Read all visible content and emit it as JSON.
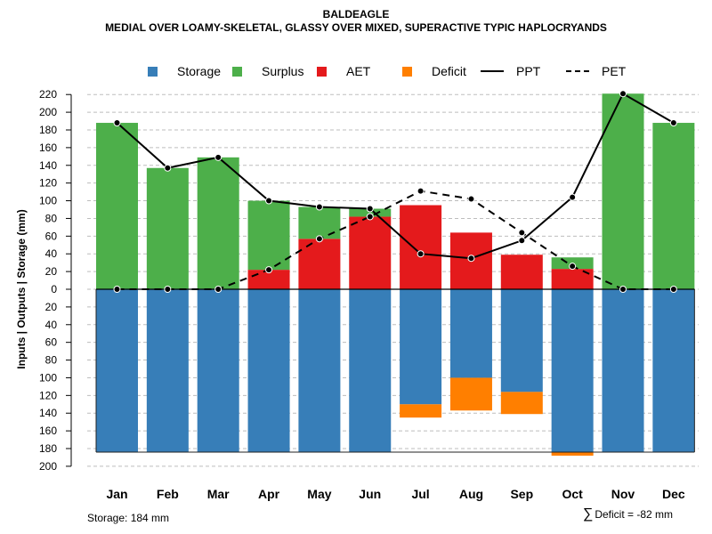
{
  "header": {
    "title": "BALDEAGLE",
    "subtitle": "MEDIAL OVER LOAMY-SKELETAL, GLASSY OVER MIXED, SUPERACTIVE TYPIC HAPLOCRYANDS"
  },
  "legend": {
    "storage": "Storage",
    "surplus": "Surplus",
    "aet": "AET",
    "deficit": "Deficit",
    "ppt": "PPT",
    "pet": "PET"
  },
  "colors": {
    "storage": "#377EB8",
    "surplus": "#4DAF4A",
    "aet": "#E41A1C",
    "deficit": "#FF7F00",
    "grid": "#bdbdbd",
    "line": "#000000"
  },
  "footer": {
    "storage": "Storage: 184 mm",
    "deficit": "Deficit = -82 mm",
    "sigma": "∑"
  },
  "chart_data": {
    "type": "bar",
    "title": "BALDEAGLE",
    "ylabel": "Inputs | Outputs | Storage     (mm)",
    "xlabel": "",
    "categories": [
      "Jan",
      "Feb",
      "Mar",
      "Apr",
      "May",
      "Jun",
      "Jul",
      "Aug",
      "Sep",
      "Oct",
      "Nov",
      "Dec"
    ],
    "ylim": [
      -200,
      220
    ],
    "yticks": [
      -200,
      -180,
      -160,
      -140,
      -120,
      -100,
      -80,
      -60,
      -40,
      -20,
      0,
      20,
      40,
      60,
      80,
      100,
      120,
      140,
      160,
      180,
      200,
      220
    ],
    "ytick_labels": [
      "200",
      "180",
      "160",
      "140",
      "120",
      "100",
      "80",
      "60",
      "40",
      "20",
      "0",
      "20",
      "40",
      "60",
      "80",
      "100",
      "120",
      "140",
      "160",
      "180",
      "200",
      "220"
    ],
    "series": [
      {
        "name": "AET",
        "values": [
          0,
          0,
          0,
          22,
          57,
          82,
          95,
          64,
          39,
          23,
          0,
          0
        ]
      },
      {
        "name": "Surplus",
        "values": [
          188,
          137,
          149,
          78,
          36,
          9,
          0,
          0,
          0,
          13,
          221,
          188
        ]
      },
      {
        "name": "Storage",
        "values": [
          184,
          184,
          184,
          184,
          184,
          184,
          130,
          100,
          116,
          184,
          184,
          184
        ]
      },
      {
        "name": "Deficit",
        "values": [
          0,
          0,
          0,
          0,
          0,
          0,
          15,
          37,
          25,
          4,
          0,
          0
        ]
      },
      {
        "name": "PPT",
        "values": [
          188,
          137,
          149,
          100,
          93,
          91,
          40,
          35,
          55,
          104,
          221,
          188
        ]
      },
      {
        "name": "PET",
        "values": [
          0,
          0,
          0,
          22,
          57,
          82,
          111,
          102,
          64,
          26,
          0,
          0
        ]
      }
    ]
  }
}
